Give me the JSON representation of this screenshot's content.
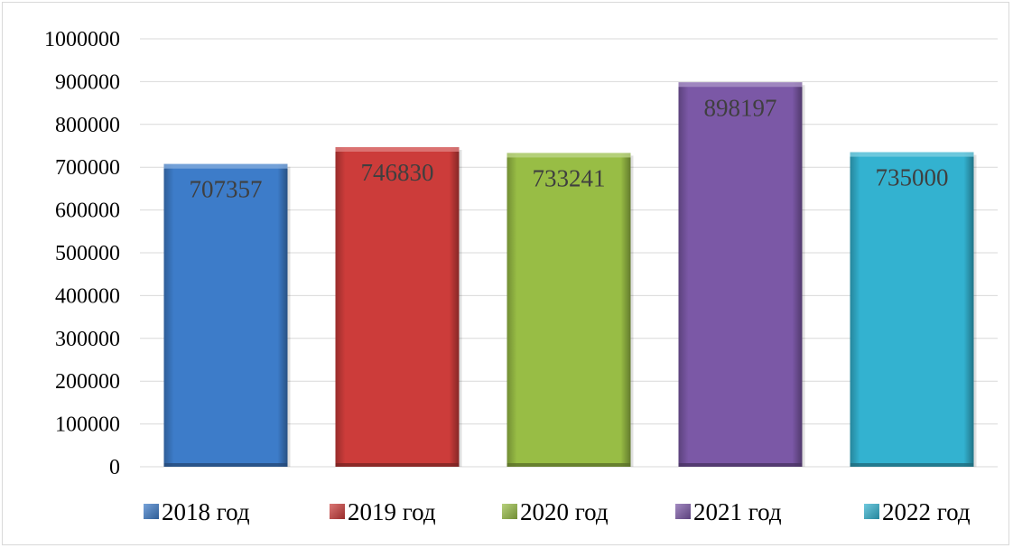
{
  "chart_data": {
    "type": "bar",
    "categories": [
      "2018 год",
      "2019 год",
      "2020 год",
      "2021 год",
      "2022 год"
    ],
    "values": [
      707357,
      746830,
      733241,
      898197,
      735000
    ],
    "data_labels": [
      "707357",
      "746830",
      "733241",
      "898197",
      "735000"
    ],
    "colors": [
      "#3d7cc9",
      "#cc3c3a",
      "#98bd45",
      "#7b58a6",
      "#33b2d0"
    ],
    "ylim": [
      0,
      1000000
    ],
    "yticks": [
      0,
      100000,
      200000,
      300000,
      400000,
      500000,
      600000,
      700000,
      800000,
      900000,
      1000000
    ],
    "ytick_labels": [
      "0",
      "100000",
      "200000",
      "300000",
      "400000",
      "500000",
      "600000",
      "700000",
      "800000",
      "900000",
      "1000000"
    ],
    "grid": true,
    "legend_position": "bottom"
  }
}
